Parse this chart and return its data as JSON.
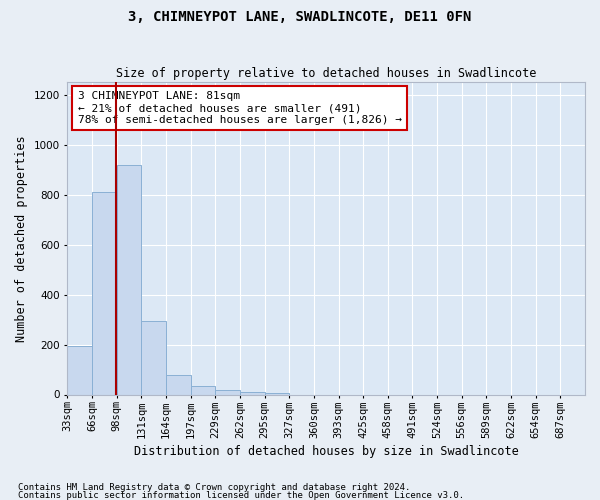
{
  "title": "3, CHIMNEYPOT LANE, SWADLINCOTE, DE11 0FN",
  "subtitle": "Size of property relative to detached houses in Swadlincote",
  "xlabel": "Distribution of detached houses by size in Swadlincote",
  "ylabel": "Number of detached properties",
  "bin_labels": [
    "33sqm",
    "66sqm",
    "98sqm",
    "131sqm",
    "164sqm",
    "197sqm",
    "229sqm",
    "262sqm",
    "295sqm",
    "327sqm",
    "360sqm",
    "393sqm",
    "425sqm",
    "458sqm",
    "491sqm",
    "524sqm",
    "556sqm",
    "589sqm",
    "622sqm",
    "654sqm",
    "687sqm"
  ],
  "bar_heights": [
    195,
    810,
    920,
    295,
    80,
    35,
    20,
    10,
    8,
    0,
    0,
    0,
    0,
    0,
    0,
    0,
    0,
    0,
    0,
    0
  ],
  "bar_color": "#c8d8ee",
  "bar_edge_color": "#8ab0d4",
  "vline_x_bar_index": 1.48,
  "vline_color": "#aa0000",
  "ylim": [
    0,
    1250
  ],
  "yticks": [
    0,
    200,
    400,
    600,
    800,
    1000,
    1200
  ],
  "annotation_text": "3 CHIMNEYPOT LANE: 81sqm\n← 21% of detached houses are smaller (491)\n78% of semi-detached houses are larger (1,826) →",
  "annotation_box_facecolor": "#ffffff",
  "annotation_box_edgecolor": "#cc0000",
  "footnote1": "Contains HM Land Registry data © Crown copyright and database right 2024.",
  "footnote2": "Contains public sector information licensed under the Open Government Licence v3.0.",
  "fig_facecolor": "#e8eef5",
  "plot_facecolor": "#dce8f5",
  "grid_color": "#ffffff",
  "title_fontsize": 10,
  "subtitle_fontsize": 8.5,
  "tick_fontsize": 7.5,
  "ylabel_fontsize": 8.5,
  "xlabel_fontsize": 8.5,
  "annotation_fontsize": 8,
  "footnote_fontsize": 6.5
}
